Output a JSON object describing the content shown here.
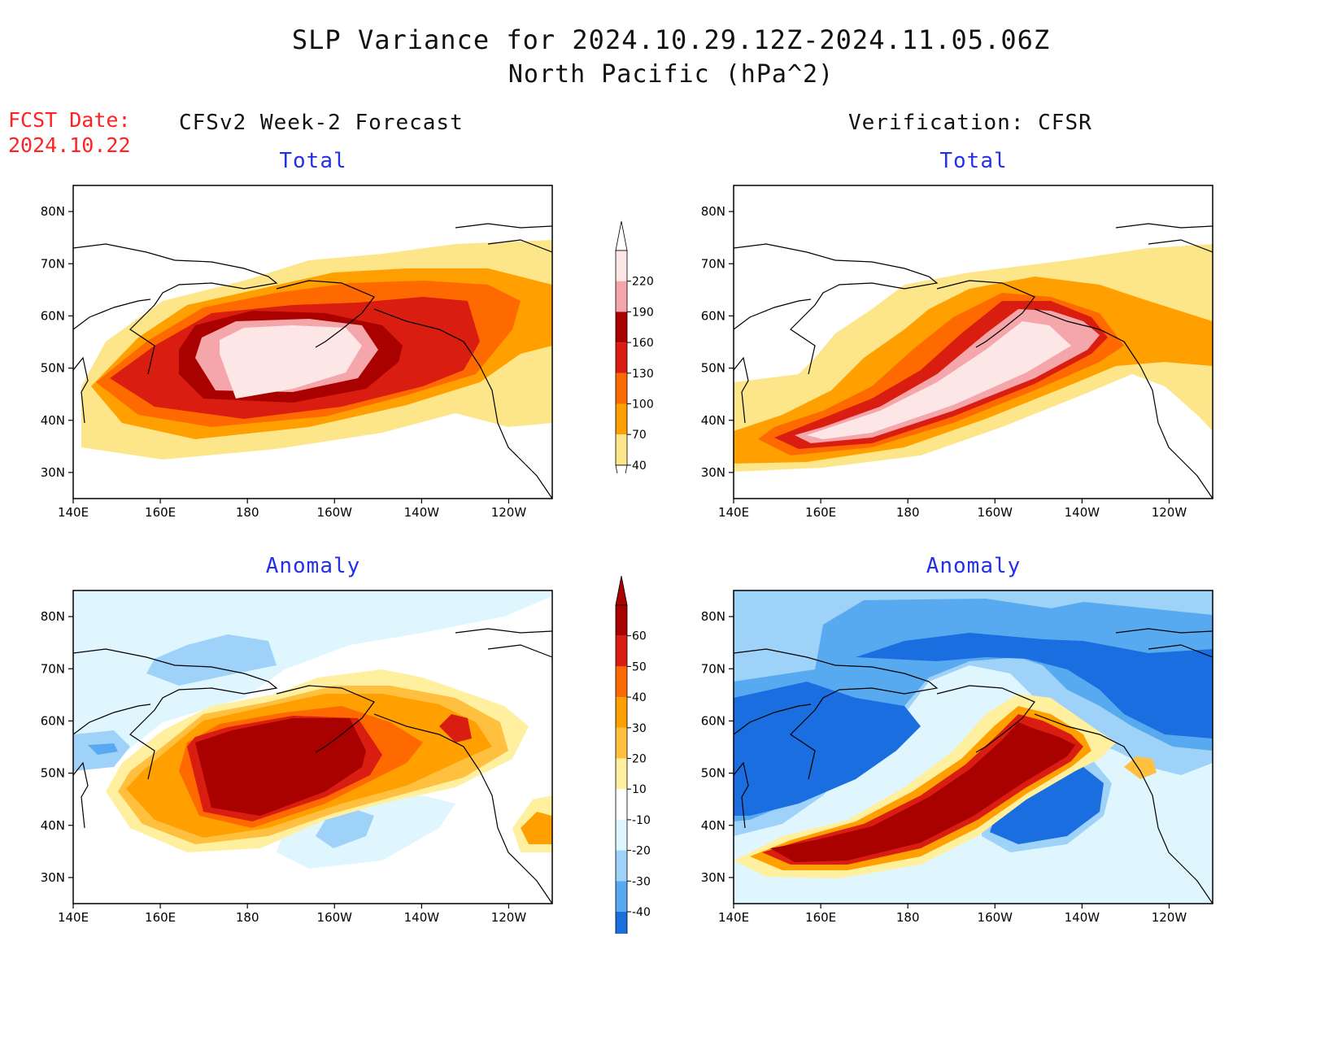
{
  "title_line1": "SLP Variance for 2024.10.29.12Z-2024.11.05.06Z",
  "title_line2": "North Pacific (hPa^2)",
  "fcst_label": "FCST Date:",
  "fcst_date": "2024.10.22",
  "left_column_title": "CFSv2 Week-2 Forecast",
  "right_column_title": "Verification: CFSR",
  "panels": [
    {
      "title": "Total"
    },
    {
      "title": "Total"
    },
    {
      "title": "Anomaly"
    },
    {
      "title": "Anomaly"
    }
  ],
  "map_axes": {
    "lat_labels": [
      "80N",
      "70N",
      "60N",
      "50N",
      "40N",
      "30N"
    ],
    "lon_labels": [
      "140E",
      "160E",
      "180",
      "160W",
      "140W",
      "120W"
    ],
    "lat_values": [
      80,
      70,
      60,
      50,
      40,
      30
    ],
    "lon_values": [
      140,
      160,
      180,
      200,
      220,
      240
    ],
    "lat_range": [
      25,
      85
    ],
    "lon_range": [
      140,
      250
    ]
  },
  "total_colorbar": {
    "labels": [
      "220",
      "190",
      "160",
      "130",
      "100",
      "70",
      "40"
    ],
    "colors": [
      "#fde6e6",
      "#f4a6aa",
      "#a90000",
      "#d91d10",
      "#ff6a00",
      "#ffa000",
      "#fde68a"
    ]
  },
  "anomaly_colorbar": {
    "labels": [
      "60",
      "50",
      "40",
      "30",
      "20",
      "10",
      "-10",
      "-20",
      "-30",
      "-40"
    ],
    "colors": [
      "#a90000",
      "#d91d10",
      "#ff6a00",
      "#ffa000",
      "#ffc040",
      "#fff0a0",
      "#ffffff",
      "#dff6ff",
      "#9fd2f8",
      "#58aaf0",
      "#1a6ee0"
    ]
  },
  "legend_colors": {
    "pale_yellow": "#fde68a",
    "orange": "#ffa000",
    "dark_orange": "#ff6a00",
    "red": "#d91d10",
    "dark_red": "#a90000",
    "pink": "#f4a6aa",
    "light_pink": "#fde6e6",
    "very_light_blue": "#dff6ff",
    "light_blue": "#9fd2f8",
    "medium_blue": "#58aaf0",
    "blue": "#1a6ee0",
    "dark_blue": "#1450c8"
  }
}
